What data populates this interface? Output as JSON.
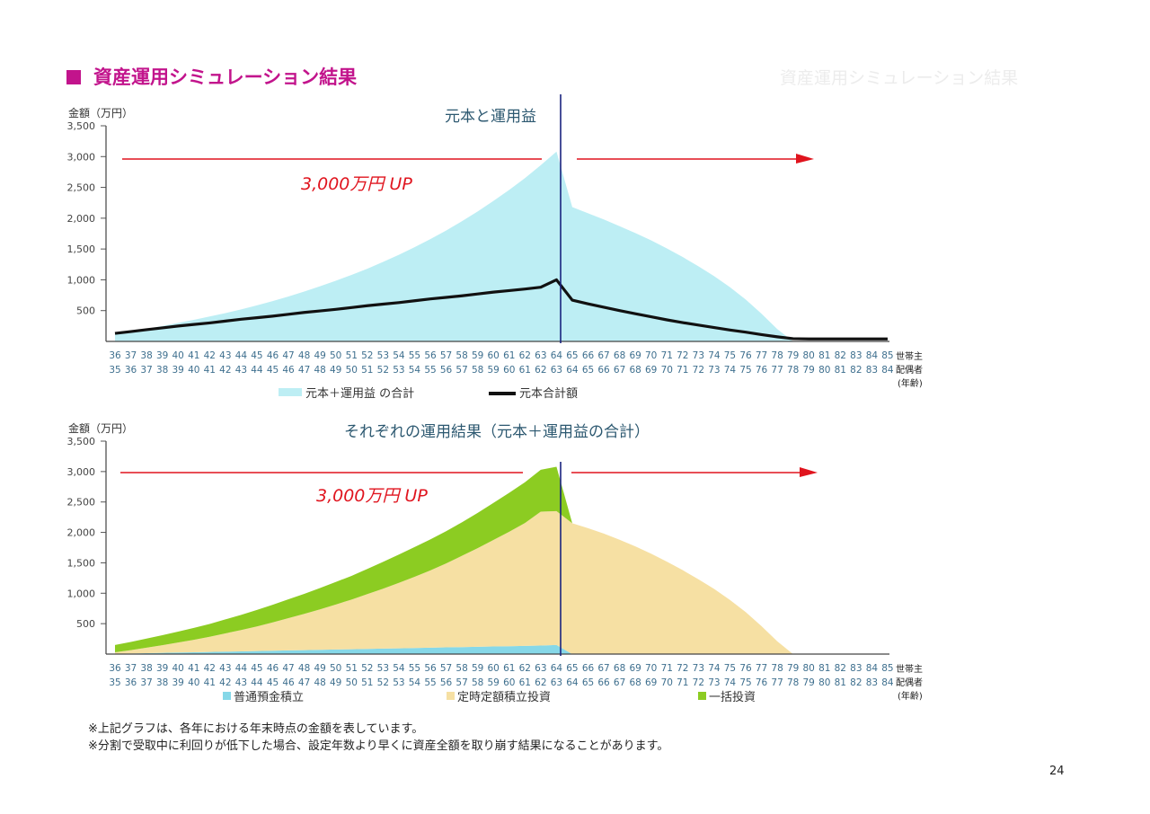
{
  "page": {
    "heading": "資産運用シミュレーション結果",
    "notes": [
      "※上記グラフは、各年における年末時点の金額を表しています。",
      "※分割で受取中に利回りが低下した場合、設定年数より早くに資産全額を取り崩す結果になることがあります。"
    ],
    "page_number": "24",
    "ghost_heading": "資産運用シミュレーション結果"
  },
  "annotation": {
    "text": "3,000万円 UP",
    "color": "#e0141e"
  },
  "axis_labels": {
    "y": "金額（万円）",
    "row1": "世帯主",
    "row2": "配偶者",
    "age": "(年齢)"
  },
  "colors": {
    "cyan_area": "#bdeef4",
    "black_line": "#111111",
    "deposit": "#86d8e8",
    "fixed_invest": "#f6e0a3",
    "lump_sum": "#8ccc22",
    "vline": "#1a237e",
    "tick_text": "#3e6f8e",
    "title": "#2c5870",
    "red": "#e0141e"
  },
  "chart_data": [
    {
      "type": "area",
      "title": "元本と運用益",
      "ylabel": "金額（万円）",
      "ylim": [
        0,
        3500
      ],
      "yticks": [
        500,
        1000,
        1500,
        2000,
        2500,
        3000,
        3500
      ],
      "x_row1": [
        "36",
        "37",
        "38",
        "39",
        "40",
        "41",
        "42",
        "43",
        "44",
        "45",
        "46",
        "47",
        "48",
        "49",
        "50",
        "51",
        "52",
        "53",
        "54",
        "55",
        "56",
        "57",
        "58",
        "59",
        "60",
        "61",
        "62",
        "63",
        "64",
        "65",
        "66",
        "67",
        "68",
        "69",
        "70",
        "71",
        "72",
        "73",
        "74",
        "75",
        "76",
        "77",
        "78",
        "79",
        "80",
        "81",
        "82",
        "83",
        "84",
        "85"
      ],
      "x_row2": [
        "35",
        "36",
        "37",
        "38",
        "39",
        "40",
        "41",
        "42",
        "43",
        "44",
        "45",
        "46",
        "47",
        "48",
        "49",
        "50",
        "51",
        "52",
        "53",
        "54",
        "55",
        "56",
        "57",
        "58",
        "59",
        "60",
        "61",
        "62",
        "63",
        "64",
        "65",
        "66",
        "67",
        "68",
        "69",
        "70",
        "71",
        "72",
        "73",
        "74",
        "75",
        "76",
        "77",
        "78",
        "79",
        "80",
        "81",
        "82",
        "83",
        "84"
      ],
      "series": [
        {
          "name": "元本＋運用益 の合計",
          "kind": "area",
          "values": [
            120,
            160,
            205,
            250,
            300,
            350,
            405,
            460,
            520,
            585,
            655,
            730,
            810,
            895,
            985,
            1080,
            1180,
            1290,
            1405,
            1530,
            1660,
            1800,
            1950,
            2110,
            2280,
            2460,
            2650,
            2860,
            3080,
            2180,
            2080,
            1980,
            1870,
            1760,
            1640,
            1510,
            1370,
            1220,
            1060,
            880,
            680,
            450,
            200,
            0,
            0,
            0,
            0,
            0,
            0,
            0
          ]
        },
        {
          "name": "元本合計額",
          "kind": "line",
          "values": [
            130,
            160,
            190,
            220,
            250,
            275,
            300,
            330,
            360,
            385,
            410,
            440,
            470,
            495,
            520,
            550,
            580,
            605,
            630,
            660,
            690,
            715,
            740,
            770,
            800,
            825,
            850,
            880,
            1000,
            670,
            610,
            555,
            500,
            450,
            400,
            350,
            305,
            265,
            225,
            185,
            150,
            110,
            75,
            45,
            40,
            40,
            40,
            40,
            40,
            40
          ]
        }
      ]
    },
    {
      "type": "area",
      "title": "それぞれの運用結果（元本＋運用益の合計）",
      "ylabel": "金額（万円）",
      "ylim": [
        0,
        3500
      ],
      "yticks": [
        500,
        1000,
        1500,
        2000,
        2500,
        3000,
        3500
      ],
      "x_row1": [
        "36",
        "37",
        "38",
        "39",
        "40",
        "41",
        "42",
        "43",
        "44",
        "45",
        "46",
        "47",
        "48",
        "49",
        "50",
        "51",
        "52",
        "53",
        "54",
        "55",
        "56",
        "57",
        "58",
        "59",
        "60",
        "61",
        "62",
        "63",
        "64",
        "65",
        "66",
        "67",
        "68",
        "69",
        "70",
        "71",
        "72",
        "73",
        "74",
        "75",
        "76",
        "77",
        "78",
        "79",
        "80",
        "81",
        "82",
        "83",
        "84",
        "85"
      ],
      "x_row2": [
        "35",
        "36",
        "37",
        "38",
        "39",
        "40",
        "41",
        "42",
        "43",
        "44",
        "45",
        "46",
        "47",
        "48",
        "49",
        "50",
        "51",
        "52",
        "53",
        "54",
        "55",
        "56",
        "57",
        "58",
        "59",
        "60",
        "61",
        "62",
        "63",
        "64",
        "65",
        "66",
        "67",
        "68",
        "69",
        "70",
        "71",
        "72",
        "73",
        "74",
        "75",
        "76",
        "77",
        "78",
        "79",
        "80",
        "81",
        "82",
        "83",
        "84"
      ],
      "stacked": true,
      "series": [
        {
          "name": "普通預金積立",
          "kind": "area",
          "values": [
            5,
            10,
            15,
            20,
            25,
            30,
            35,
            40,
            45,
            50,
            55,
            60,
            65,
            70,
            75,
            80,
            85,
            90,
            95,
            100,
            105,
            110,
            115,
            120,
            125,
            130,
            135,
            140,
            150,
            0,
            0,
            0,
            0,
            0,
            0,
            0,
            0,
            0,
            0,
            0,
            0,
            0,
            0,
            0,
            0,
            0,
            0,
            0,
            0,
            0
          ]
        },
        {
          "name": "定時定額積立投資",
          "kind": "area",
          "values": [
            25,
            55,
            90,
            125,
            165,
            205,
            250,
            300,
            350,
            405,
            465,
            530,
            595,
            665,
            740,
            815,
            900,
            985,
            1075,
            1170,
            1270,
            1380,
            1500,
            1620,
            1750,
            1880,
            2020,
            2200,
            2200,
            2150,
            2070,
            1980,
            1880,
            1770,
            1650,
            1520,
            1380,
            1230,
            1070,
            890,
            690,
            460,
            210,
            0,
            0,
            0,
            0,
            0,
            0,
            0
          ]
        },
        {
          "name": "一括投資",
          "kind": "area",
          "values": [
            120,
            135,
            150,
            165,
            180,
            195,
            210,
            230,
            250,
            270,
            290,
            310,
            330,
            350,
            370,
            390,
            415,
            440,
            465,
            490,
            510,
            530,
            550,
            580,
            610,
            640,
            670,
            690,
            730,
            0,
            0,
            0,
            0,
            0,
            0,
            0,
            0,
            0,
            0,
            0,
            0,
            0,
            0,
            0,
            0,
            0,
            0,
            0,
            0,
            0
          ]
        }
      ]
    }
  ]
}
